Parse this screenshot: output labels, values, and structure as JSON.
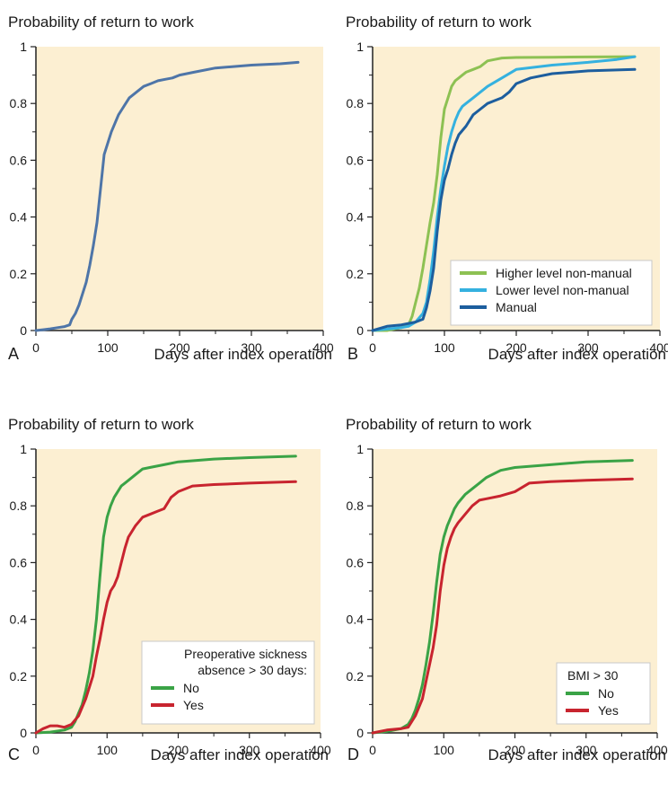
{
  "colors": {
    "plot_background": "#fcefd2",
    "axis": "#222222"
  },
  "chart_data": [
    {
      "panel_letter": "A",
      "type": "line",
      "title": "Probability of return to work",
      "xlabel": "Days after index operation",
      "ylabel": "",
      "xlim": [
        0,
        400
      ],
      "ylim": [
        0,
        1
      ],
      "xticks": [
        "0",
        "100",
        "200",
        "300",
        "400"
      ],
      "yticks": [
        "0",
        "0.2",
        "0.4",
        "0.6",
        "0.8",
        "1"
      ],
      "grid": false,
      "legend_title": "",
      "legend_position": "none",
      "series": [
        {
          "name": "",
          "color": "#4e75a8",
          "x": [
            0,
            10,
            20,
            30,
            40,
            47,
            50,
            55,
            60,
            65,
            70,
            75,
            80,
            85,
            90,
            95,
            100,
            105,
            110,
            115,
            120,
            125,
            130,
            140,
            150,
            160,
            170,
            180,
            190,
            200,
            220,
            250,
            300,
            340,
            365
          ],
          "y": [
            0,
            0.003,
            0.006,
            0.01,
            0.014,
            0.02,
            0.04,
            0.06,
            0.09,
            0.13,
            0.17,
            0.23,
            0.3,
            0.38,
            0.5,
            0.62,
            0.66,
            0.7,
            0.73,
            0.76,
            0.78,
            0.8,
            0.82,
            0.84,
            0.86,
            0.87,
            0.88,
            0.885,
            0.89,
            0.9,
            0.91,
            0.925,
            0.935,
            0.94,
            0.945
          ]
        }
      ]
    },
    {
      "panel_letter": "B",
      "type": "line",
      "title": "Probability of return to work",
      "xlabel": "Days after index operation",
      "ylabel": "",
      "xlim": [
        0,
        400
      ],
      "ylim": [
        0,
        1
      ],
      "xticks": [
        "0",
        "100",
        "200",
        "300",
        "400"
      ],
      "yticks": [
        "0",
        "0.2",
        "0.4",
        "0.6",
        "0.8",
        "1"
      ],
      "grid": false,
      "legend_title": "",
      "legend_position": "bottom-right",
      "series": [
        {
          "name": "Higher level non-manual",
          "color": "#8dc153",
          "x": [
            0,
            20,
            40,
            50,
            55,
            60,
            65,
            70,
            75,
            80,
            85,
            90,
            95,
            100,
            105,
            110,
            115,
            120,
            125,
            130,
            140,
            150,
            160,
            170,
            180,
            200,
            250,
            300,
            365
          ],
          "y": [
            0,
            0,
            0.01,
            0.02,
            0.05,
            0.1,
            0.15,
            0.22,
            0.3,
            0.38,
            0.45,
            0.55,
            0.68,
            0.78,
            0.82,
            0.86,
            0.88,
            0.89,
            0.9,
            0.91,
            0.92,
            0.93,
            0.95,
            0.955,
            0.96,
            0.962,
            0.963,
            0.964,
            0.965
          ]
        },
        {
          "name": "Lower level non-manual",
          "color": "#35b1df",
          "x": [
            0,
            20,
            40,
            50,
            60,
            70,
            75,
            80,
            85,
            90,
            95,
            100,
            105,
            110,
            115,
            120,
            125,
            130,
            140,
            150,
            160,
            180,
            200,
            250,
            300,
            340,
            365
          ],
          "y": [
            0,
            0.005,
            0.01,
            0.015,
            0.03,
            0.06,
            0.1,
            0.18,
            0.28,
            0.4,
            0.5,
            0.58,
            0.65,
            0.7,
            0.74,
            0.77,
            0.79,
            0.8,
            0.82,
            0.84,
            0.86,
            0.89,
            0.92,
            0.935,
            0.945,
            0.955,
            0.965
          ]
        },
        {
          "name": "Manual",
          "color": "#1d5e9e",
          "x": [
            0,
            20,
            40,
            50,
            60,
            70,
            75,
            80,
            85,
            90,
            95,
            100,
            105,
            110,
            115,
            120,
            130,
            140,
            150,
            160,
            170,
            180,
            190,
            200,
            220,
            250,
            300,
            365
          ],
          "y": [
            0,
            0.015,
            0.02,
            0.025,
            0.03,
            0.04,
            0.08,
            0.14,
            0.22,
            0.35,
            0.46,
            0.53,
            0.57,
            0.62,
            0.66,
            0.69,
            0.72,
            0.76,
            0.78,
            0.8,
            0.81,
            0.82,
            0.84,
            0.87,
            0.89,
            0.905,
            0.915,
            0.92
          ]
        }
      ]
    },
    {
      "panel_letter": "C",
      "type": "line",
      "title": "Probability of return to work",
      "xlabel": "Days after index operation",
      "ylabel": "",
      "xlim": [
        0,
        400
      ],
      "ylim": [
        0,
        1
      ],
      "xticks": [
        "0",
        "100",
        "200",
        "300",
        "400"
      ],
      "yticks": [
        "0",
        "0.2",
        "0.4",
        "0.6",
        "0.8",
        "1"
      ],
      "grid": false,
      "legend_title": "Preoperative sickness absence > 30 days:",
      "legend_position": "bottom-right",
      "series": [
        {
          "name": "No",
          "color": "#3aa346",
          "x": [
            0,
            20,
            40,
            50,
            55,
            60,
            65,
            70,
            75,
            80,
            85,
            90,
            95,
            100,
            105,
            110,
            115,
            120,
            125,
            130,
            140,
            150,
            160,
            180,
            200,
            250,
            300,
            365
          ],
          "y": [
            0,
            0.003,
            0.01,
            0.02,
            0.04,
            0.07,
            0.1,
            0.15,
            0.21,
            0.29,
            0.4,
            0.55,
            0.69,
            0.76,
            0.8,
            0.83,
            0.85,
            0.87,
            0.88,
            0.89,
            0.91,
            0.93,
            0.935,
            0.945,
            0.955,
            0.965,
            0.97,
            0.975
          ]
        },
        {
          "name": "Yes",
          "color": "#c8242f",
          "x": [
            0,
            10,
            20,
            30,
            40,
            50,
            60,
            70,
            80,
            85,
            90,
            95,
            100,
            105,
            110,
            115,
            120,
            125,
            130,
            140,
            150,
            160,
            170,
            180,
            190,
            200,
            220,
            250,
            300,
            365
          ],
          "y": [
            0,
            0.015,
            0.025,
            0.025,
            0.02,
            0.03,
            0.06,
            0.12,
            0.2,
            0.27,
            0.33,
            0.4,
            0.46,
            0.5,
            0.52,
            0.55,
            0.6,
            0.65,
            0.69,
            0.73,
            0.76,
            0.77,
            0.78,
            0.79,
            0.83,
            0.85,
            0.87,
            0.875,
            0.88,
            0.885
          ]
        }
      ]
    },
    {
      "panel_letter": "D",
      "type": "line",
      "title": "Probability of return to work",
      "xlabel": "Days after index operation",
      "ylabel": "",
      "xlim": [
        0,
        400
      ],
      "ylim": [
        0,
        1
      ],
      "xticks": [
        "0",
        "100",
        "200",
        "300",
        "400"
      ],
      "yticks": [
        "0",
        "0.2",
        "0.4",
        "0.6",
        "0.8",
        "1"
      ],
      "grid": false,
      "legend_title": "BMI > 30",
      "legend_position": "bottom-right",
      "series": [
        {
          "name": "No",
          "color": "#3aa346",
          "x": [
            0,
            20,
            40,
            50,
            55,
            60,
            65,
            70,
            75,
            80,
            85,
            90,
            95,
            100,
            105,
            110,
            115,
            120,
            130,
            140,
            150,
            160,
            180,
            200,
            250,
            300,
            365
          ],
          "y": [
            0,
            0.005,
            0.015,
            0.03,
            0.05,
            0.08,
            0.12,
            0.17,
            0.24,
            0.32,
            0.42,
            0.53,
            0.63,
            0.69,
            0.73,
            0.76,
            0.79,
            0.81,
            0.84,
            0.86,
            0.88,
            0.9,
            0.925,
            0.935,
            0.945,
            0.955,
            0.96
          ]
        },
        {
          "name": "Yes",
          "color": "#c8242f",
          "x": [
            0,
            20,
            40,
            50,
            60,
            70,
            75,
            80,
            85,
            90,
            95,
            100,
            105,
            110,
            115,
            120,
            130,
            140,
            150,
            160,
            180,
            200,
            220,
            250,
            300,
            365
          ],
          "y": [
            0,
            0.01,
            0.015,
            0.02,
            0.06,
            0.12,
            0.18,
            0.24,
            0.3,
            0.38,
            0.5,
            0.59,
            0.65,
            0.69,
            0.72,
            0.74,
            0.77,
            0.8,
            0.82,
            0.825,
            0.835,
            0.85,
            0.88,
            0.885,
            0.89,
            0.895
          ]
        }
      ]
    }
  ]
}
